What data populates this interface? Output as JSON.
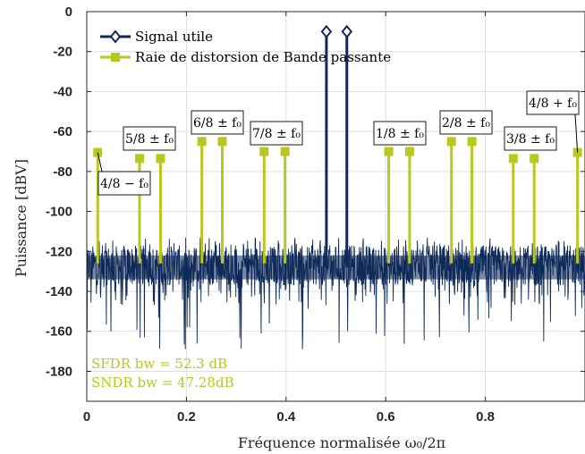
{
  "chart_data": {
    "type": "line",
    "xlabel": "Fréquence normalisée ω₀/2π",
    "ylabel": "Puissance [dBV]",
    "xlim": [
      0,
      1
    ],
    "ylim": [
      -195,
      0
    ],
    "xticks": [
      0,
      0.2,
      0.4,
      0.6,
      0.8
    ],
    "xtick_labels": [
      "0",
      "0.2",
      "0.4",
      "0.6",
      "0.8"
    ],
    "yticks": [
      0,
      -20,
      -40,
      -60,
      -80,
      -100,
      -120,
      -140,
      -160,
      -180
    ],
    "ytick_labels": [
      "0",
      "-20",
      "-40",
      "-60",
      "-80",
      "-100",
      "-120",
      "-140",
      "-160",
      "-180"
    ],
    "grid": true,
    "legend_position": "top-left",
    "series": [
      {
        "name": "Signal utile",
        "color": "#0f2a5a",
        "marker": "diamond",
        "points": [
          {
            "x": 0.481,
            "y": -10
          },
          {
            "x": 0.522,
            "y": -10
          }
        ]
      },
      {
        "name": "Raie de distorsion de Bande passante",
        "color": "#b8c81e",
        "marker": "square",
        "points": [
          {
            "x": 0.022,
            "y": -70.5
          },
          {
            "x": 0.106,
            "y": -73.5
          },
          {
            "x": 0.148,
            "y": -73.5
          },
          {
            "x": 0.231,
            "y": -65
          },
          {
            "x": 0.272,
            "y": -65
          },
          {
            "x": 0.356,
            "y": -70
          },
          {
            "x": 0.398,
            "y": -70
          },
          {
            "x": 0.606,
            "y": -70
          },
          {
            "x": 0.648,
            "y": -70
          },
          {
            "x": 0.732,
            "y": -65
          },
          {
            "x": 0.773,
            "y": -65
          },
          {
            "x": 0.856,
            "y": -73.5
          },
          {
            "x": 0.898,
            "y": -73.5
          },
          {
            "x": 0.985,
            "y": -70.5
          }
        ]
      }
    ],
    "noise_floor": {
      "color": "#0f2a5a",
      "typical_range": [
        -137,
        -117
      ],
      "deep_dip_min": -170
    },
    "annotations": [
      {
        "text": "4/8 − f₀",
        "x": 0.022,
        "y": -70.5
      },
      {
        "text": "5/8 ± f₀",
        "x": 0.127,
        "y": -73.5
      },
      {
        "text": "6/8 ± f₀",
        "x": 0.251,
        "y": -65
      },
      {
        "text": "7/8 ± f₀",
        "x": 0.377,
        "y": -70
      },
      {
        "text": "1/8 ± f₀",
        "x": 0.627,
        "y": -70
      },
      {
        "text": "2/8 ± f₀",
        "x": 0.752,
        "y": -65
      },
      {
        "text": "3/8 ± f₀",
        "x": 0.877,
        "y": -73.5
      },
      {
        "text": "4/8 + f₀",
        "x": 0.985,
        "y": -70.5
      }
    ],
    "metrics": [
      {
        "text": "SFDR bw = 52.3 dB"
      },
      {
        "text": "SNDR bw = 47.28dB"
      }
    ],
    "metrics_color": "#b8c81e"
  }
}
